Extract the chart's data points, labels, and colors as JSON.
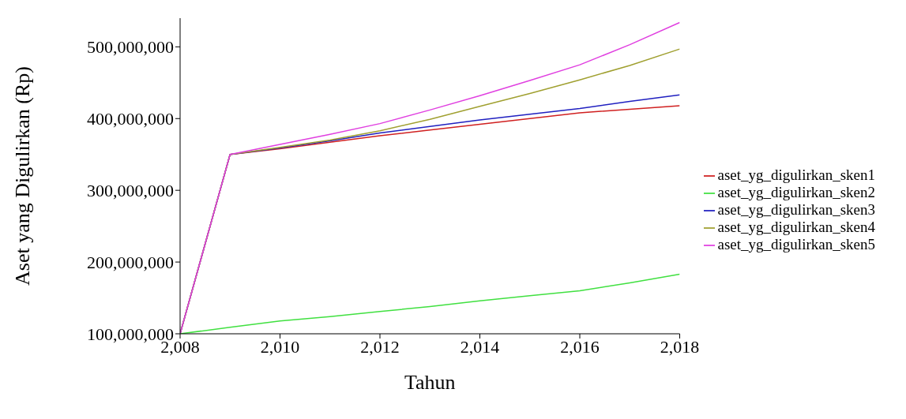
{
  "chart_data": {
    "type": "line",
    "xlabel": "Tahun",
    "ylabel": "Aset yang Digulirkan (Rp)",
    "x": [
      2008,
      2009,
      2010,
      2011,
      2012,
      2013,
      2014,
      2015,
      2016,
      2017,
      2018
    ],
    "xlim": [
      2008,
      2018
    ],
    "xticks": [
      {
        "value": 2008,
        "label": "2,008"
      },
      {
        "value": 2010,
        "label": "2,010"
      },
      {
        "value": 2012,
        "label": "2,012"
      },
      {
        "value": 2014,
        "label": "2,014"
      },
      {
        "value": 2016,
        "label": "2,016"
      },
      {
        "value": 2018,
        "label": "2,018"
      }
    ],
    "ylim": [
      100000000,
      540000000
    ],
    "yticks": [
      {
        "value": 100000000,
        "label": "100,000,000"
      },
      {
        "value": 200000000,
        "label": "200,000,000"
      },
      {
        "value": 300000000,
        "label": "300,000,000"
      },
      {
        "value": 400000000,
        "label": "400,000,000"
      },
      {
        "value": 500000000,
        "label": "500,000,000"
      }
    ],
    "grid": false,
    "legend": "right",
    "line_style": "solid",
    "series": [
      {
        "name": "aset_yg_digulirkan_sken1",
        "color": "#d02020",
        "values": [
          100000000,
          350000000,
          358000000,
          367000000,
          376000000,
          384000000,
          392000000,
          400000000,
          408000000,
          413000000,
          418000000
        ]
      },
      {
        "name": "aset_yg_digulirkan_sken2",
        "color": "#40e040",
        "values": [
          100000000,
          109000000,
          118000000,
          124000000,
          131000000,
          138000000,
          146000000,
          153000000,
          160000000,
          171000000,
          183000000
        ]
      },
      {
        "name": "aset_yg_digulirkan_sken3",
        "color": "#2020c0",
        "values": [
          100000000,
          350000000,
          359000000,
          369000000,
          380000000,
          389000000,
          398000000,
          406000000,
          414000000,
          424000000,
          433000000
        ]
      },
      {
        "name": "aset_yg_digulirkan_sken4",
        "color": "#a0a030",
        "values": [
          100000000,
          350000000,
          360000000,
          370000000,
          383000000,
          399000000,
          417000000,
          435000000,
          454000000,
          474000000,
          497000000
        ]
      },
      {
        "name": "aset_yg_digulirkan_sken5",
        "color": "#e040e0",
        "values": [
          100000000,
          350000000,
          364000000,
          378000000,
          393000000,
          412000000,
          432000000,
          453000000,
          475000000,
          503000000,
          534000000
        ]
      }
    ]
  }
}
